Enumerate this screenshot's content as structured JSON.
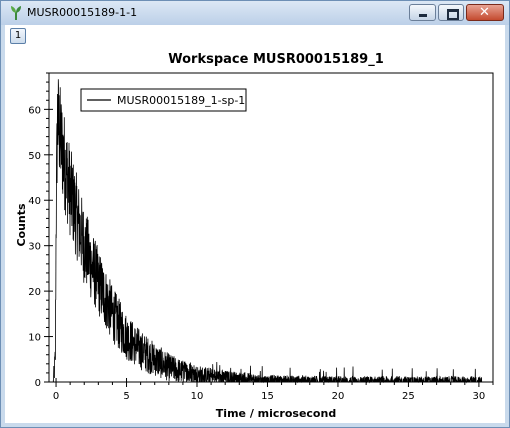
{
  "window": {
    "title": "MUSR00015189-1-1",
    "badge": "1",
    "close_glyph": "✕"
  },
  "chart_data": {
    "type": "line",
    "title": "Workspace MUSR00015189_1",
    "xlabel": "Time / microsecond",
    "ylabel": "Counts",
    "xlim": [
      -0.5,
      31
    ],
    "ylim": [
      0,
      68
    ],
    "xticks": [
      0,
      5,
      10,
      15,
      20,
      25,
      30
    ],
    "yticks": [
      0,
      10,
      20,
      30,
      40,
      50,
      60
    ],
    "grid": false,
    "legend_position": "top-left",
    "series": [
      {
        "name": "MUSR00015189_1-sp-1",
        "color": "#000000",
        "envelope": {
          "x": [
            -0.2,
            -0.05,
            0.0,
            0.1,
            0.25,
            0.5,
            1,
            1.5,
            2,
            3,
            4,
            5,
            6,
            7,
            8,
            9,
            10,
            12,
            15,
            20,
            25,
            29.5,
            30.2
          ],
          "y": [
            0,
            5,
            35,
            58,
            55,
            50,
            42,
            36,
            30,
            22,
            15,
            10,
            7,
            5,
            3.2,
            2.2,
            1.5,
            0.8,
            0.3,
            0.1,
            0.05,
            0.02,
            0
          ]
        }
      }
    ]
  }
}
